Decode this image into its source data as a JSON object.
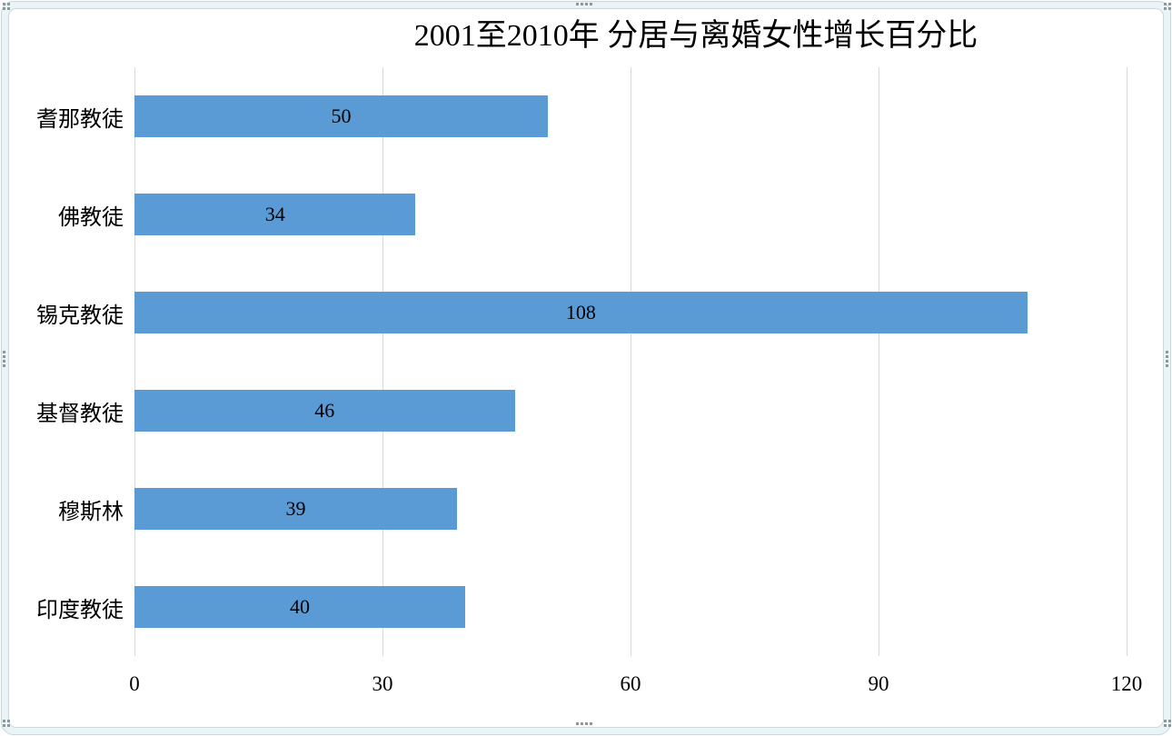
{
  "chart_data": {
    "type": "bar",
    "orientation": "horizontal",
    "title": "2001至2010年 分居与离婚女性增长百分比",
    "categories": [
      "耆那教徒",
      "佛教徒",
      "锡克教徒",
      "基督教徒",
      "穆斯林",
      "印度教徒"
    ],
    "values": [
      50,
      34,
      108,
      46,
      39,
      40
    ],
    "data_labels": [
      "50",
      "34",
      "108",
      "46",
      "39",
      "40"
    ],
    "xlabel": "",
    "ylabel": "",
    "xlim": [
      0,
      120
    ],
    "xticks": [
      "0",
      "30",
      "60",
      "90",
      "120"
    ],
    "grid": "vertical-major",
    "legend": "none",
    "data_label_position": "inside-center",
    "colors": {
      "bar": "#5B9BD5",
      "gridline": "#D9D9D9",
      "text": "#000000",
      "frame_fill": "#E9F4F6",
      "frame_line": "#C6D8DC",
      "handle_dot": "#8B999D"
    }
  }
}
